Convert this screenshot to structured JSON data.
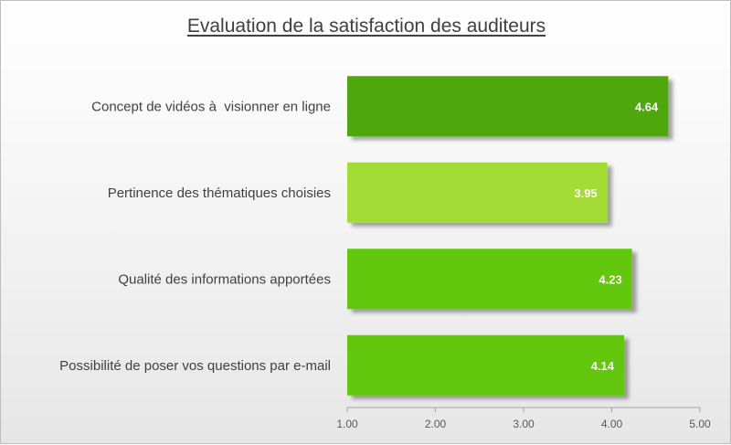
{
  "chart_data": {
    "type": "bar",
    "orientation": "horizontal",
    "title": "Evaluation de la satisfaction des auditeurs",
    "categories": [
      "Concept de vidéos à  visionner en ligne",
      "Pertinence des thématiques choisies",
      "Qualité des informations apportées",
      "Possibilité de poser vos questions par e-mail"
    ],
    "values": [
      4.64,
      3.95,
      4.23,
      4.14
    ],
    "value_labels": [
      "4.64",
      "3.95",
      "4.23",
      "4.14"
    ],
    "bar_colors": [
      "#4ea70b",
      "#a3dc36",
      "#64c70f",
      "#64c70f"
    ],
    "xlim": [
      1,
      5
    ],
    "x_ticks": [
      1,
      2,
      3,
      4,
      5
    ],
    "x_tick_labels": [
      "1.00",
      "2.00",
      "3.00",
      "4.00",
      "5.00"
    ],
    "grid": false,
    "legend": "none",
    "xlabel": "",
    "ylabel": ""
  }
}
